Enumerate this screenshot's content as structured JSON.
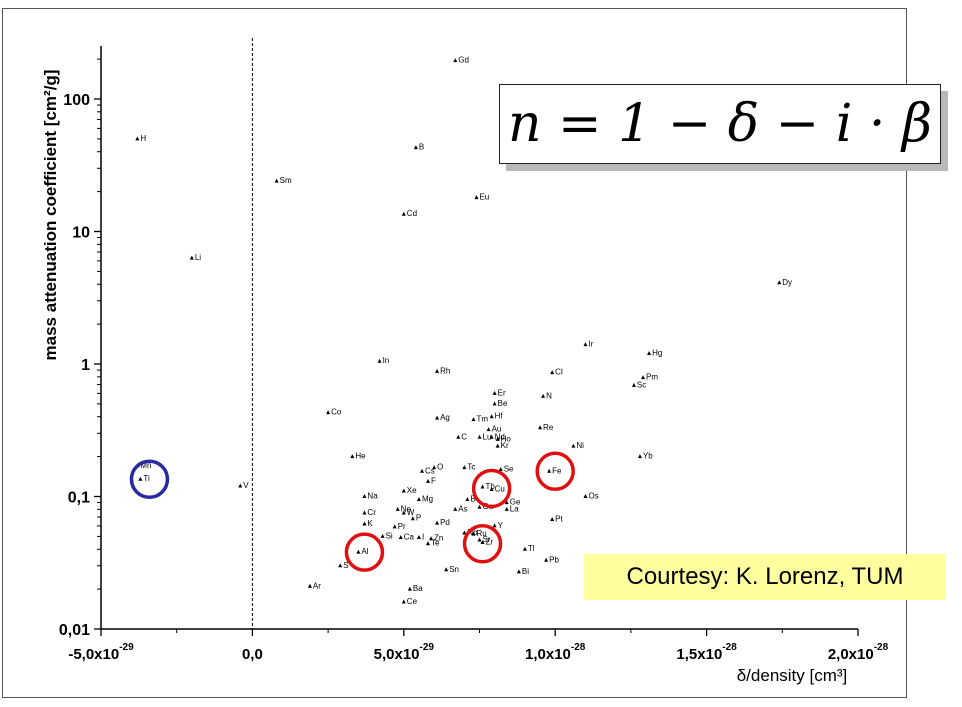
{
  "chart_data": {
    "type": "scatter",
    "xlabel": "δ/density [cm³]",
    "ylabel": "mass attenuation coefficient [cm²/g]",
    "xlim": [
      -5e-29,
      2e-28
    ],
    "ylim": [
      0.01,
      250
    ],
    "yscale": "log",
    "x_ticks": [
      {
        "value": -5e-29,
        "label_base": "-5,0x10",
        "label_exp": "-29"
      },
      {
        "value": 0,
        "label_base": "0,0",
        "label_exp": ""
      },
      {
        "value": 5e-29,
        "label_base": "5,0x10",
        "label_exp": "-29"
      },
      {
        "value": 1e-28,
        "label_base": "1,0x10",
        "label_exp": "-28"
      },
      {
        "value": 1.5e-28,
        "label_base": "1,5x10",
        "label_exp": "-28"
      },
      {
        "value": 2e-28,
        "label_base": "2,0x10",
        "label_exp": "-28"
      }
    ],
    "y_ticks": [
      {
        "value": 100,
        "label": "100"
      },
      {
        "value": 10,
        "label": "10"
      },
      {
        "value": 1,
        "label": "1"
      },
      {
        "value": 0.1,
        "label": "0,1"
      },
      {
        "value": 0.01,
        "label": "0,01"
      }
    ],
    "points": [
      {
        "label": "Gd",
        "x": 6.7e-29,
        "y": 195
      },
      {
        "label": "H",
        "x": -3.8e-29,
        "y": 50
      },
      {
        "label": "B",
        "x": 5.4e-29,
        "y": 43
      },
      {
        "label": "Sm",
        "x": 8e-30,
        "y": 24
      },
      {
        "label": "Eu",
        "x": 7.4e-29,
        "y": 18
      },
      {
        "label": "Cd",
        "x": 5e-29,
        "y": 13.5
      },
      {
        "label": "Li",
        "x": -2e-29,
        "y": 6.3
      },
      {
        "label": "Dy",
        "x": 1.74e-28,
        "y": 4.1
      },
      {
        "label": "Ir",
        "x": 1.1e-28,
        "y": 1.4
      },
      {
        "label": "Hg",
        "x": 1.31e-28,
        "y": 1.2
      },
      {
        "label": "In",
        "x": 4.2e-29,
        "y": 1.05
      },
      {
        "label": "Rh",
        "x": 6.1e-29,
        "y": 0.88
      },
      {
        "label": "Cl",
        "x": 9.9e-29,
        "y": 0.86
      },
      {
        "label": "Pm",
        "x": 1.29e-28,
        "y": 0.79
      },
      {
        "label": "Sc",
        "x": 1.26e-28,
        "y": 0.69
      },
      {
        "label": "Er",
        "x": 8e-29,
        "y": 0.6
      },
      {
        "label": "N",
        "x": 9.6e-29,
        "y": 0.57
      },
      {
        "label": "Be",
        "x": 8e-29,
        "y": 0.5
      },
      {
        "label": "Co",
        "x": 2.5e-29,
        "y": 0.43
      },
      {
        "label": "Hf",
        "x": 7.9e-29,
        "y": 0.4
      },
      {
        "label": "Ag",
        "x": 6.1e-29,
        "y": 0.39
      },
      {
        "label": "Tm",
        "x": 7.3e-29,
        "y": 0.38
      },
      {
        "label": "Re",
        "x": 9.5e-29,
        "y": 0.33
      },
      {
        "label": "Au",
        "x": 7.8e-29,
        "y": 0.32
      },
      {
        "label": "C",
        "x": 6.8e-29,
        "y": 0.28
      },
      {
        "label": "Lu",
        "x": 7.5e-29,
        "y": 0.28
      },
      {
        "label": "Nd",
        "x": 7.9e-29,
        "y": 0.28
      },
      {
        "label": "Ho",
        "x": 8.1e-29,
        "y": 0.27
      },
      {
        "label": "Kr",
        "x": 8.1e-29,
        "y": 0.24
      },
      {
        "label": "Ni",
        "x": 1.06e-28,
        "y": 0.24
      },
      {
        "label": "He",
        "x": 3.3e-29,
        "y": 0.2
      },
      {
        "label": "Yb",
        "x": 1.28e-28,
        "y": 0.2
      },
      {
        "label": "Tc",
        "x": 7e-29,
        "y": 0.165
      },
      {
        "label": "Se",
        "x": 8.2e-29,
        "y": 0.16
      },
      {
        "label": "Fe",
        "x": 9.8e-29,
        "y": 0.155
      },
      {
        "label": "Mn",
        "x": -3.8e-29,
        "y": 0.17
      },
      {
        "label": "O",
        "x": 6e-29,
        "y": 0.165
      },
      {
        "label": "Cs",
        "x": 5.6e-29,
        "y": 0.155
      },
      {
        "label": "Ti",
        "x": -3.7e-29,
        "y": 0.135
      },
      {
        "label": "F",
        "x": 5.8e-29,
        "y": 0.13
      },
      {
        "label": "V",
        "x": -4e-30,
        "y": 0.12
      },
      {
        "label": "Tb",
        "x": 7.6e-29,
        "y": 0.118
      },
      {
        "label": "Cu",
        "x": 7.9e-29,
        "y": 0.113
      },
      {
        "label": "Xe",
        "x": 5e-29,
        "y": 0.11
      },
      {
        "label": "Na",
        "x": 3.7e-29,
        "y": 0.1
      },
      {
        "label": "Os",
        "x": 1.1e-28,
        "y": 0.1
      },
      {
        "label": "Mg",
        "x": 5.5e-29,
        "y": 0.095
      },
      {
        "label": "B",
        "x": 7.1e-29,
        "y": 0.095
      },
      {
        "label": "Ge",
        "x": 8.4e-29,
        "y": 0.09
      },
      {
        "label": "Ga",
        "x": 7.5e-29,
        "y": 0.083
      },
      {
        "label": "La",
        "x": 8.4e-29,
        "y": 0.08
      },
      {
        "label": "As",
        "x": 6.7e-29,
        "y": 0.08
      },
      {
        "label": "Ne",
        "x": 4.8e-29,
        "y": 0.08
      },
      {
        "label": "W",
        "x": 5e-29,
        "y": 0.075
      },
      {
        "label": "Cr",
        "x": 3.7e-29,
        "y": 0.075
      },
      {
        "label": "P",
        "x": 5.3e-29,
        "y": 0.068
      },
      {
        "label": "Pt",
        "x": 9.9e-29,
        "y": 0.067
      },
      {
        "label": "Pd",
        "x": 6.1e-29,
        "y": 0.063
      },
      {
        "label": "K",
        "x": 3.7e-29,
        "y": 0.062
      },
      {
        "label": "Y",
        "x": 8e-29,
        "y": 0.06
      },
      {
        "label": "Pr",
        "x": 4.7e-29,
        "y": 0.059
      },
      {
        "label": "Nb",
        "x": 7e-29,
        "y": 0.053
      },
      {
        "label": "Ru",
        "x": 7.3e-29,
        "y": 0.052
      },
      {
        "label": "Si",
        "x": 4.3e-29,
        "y": 0.05
      },
      {
        "label": "Ca",
        "x": 4.9e-29,
        "y": 0.049
      },
      {
        "label": "I",
        "x": 5.5e-29,
        "y": 0.049
      },
      {
        "label": "Zn",
        "x": 5.9e-29,
        "y": 0.048
      },
      {
        "label": "Sr",
        "x": 7.5e-29,
        "y": 0.047
      },
      {
        "label": "Zr",
        "x": 7.6e-29,
        "y": 0.045
      },
      {
        "label": "Te",
        "x": 5.8e-29,
        "y": 0.044
      },
      {
        "label": "Tl",
        "x": 9e-29,
        "y": 0.04
      },
      {
        "label": "Al",
        "x": 3.5e-29,
        "y": 0.038
      },
      {
        "label": "Pb",
        "x": 9.7e-29,
        "y": 0.033
      },
      {
        "label": "S",
        "x": 2.9e-29,
        "y": 0.03
      },
      {
        "label": "Sn",
        "x": 6.4e-29,
        "y": 0.028
      },
      {
        "label": "Bi",
        "x": 8.8e-29,
        "y": 0.027
      },
      {
        "label": "Ar",
        "x": 1.9e-29,
        "y": 0.021
      },
      {
        "label": "Ba",
        "x": 5.2e-29,
        "y": 0.02
      },
      {
        "label": "Ce",
        "x": 5e-29,
        "y": 0.016
      }
    ],
    "highlight_circles": [
      {
        "label": "Ti",
        "x": -3.4e-29,
        "y": 0.135,
        "color": "#2a2aa0"
      },
      {
        "label": "Al",
        "x": 3.7e-29,
        "y": 0.038,
        "color": "#e01010"
      },
      {
        "label": "Zr",
        "x": 7.6e-29,
        "y": 0.044,
        "color": "#e01010"
      },
      {
        "label": "Cu",
        "x": 7.9e-29,
        "y": 0.115,
        "color": "#e01010"
      },
      {
        "label": "Fe",
        "x": 1e-28,
        "y": 0.155,
        "color": "#e01010"
      }
    ],
    "reference_line": {
      "x": 0,
      "style": "dashed"
    }
  },
  "equation": "n = 1 − δ − i · β",
  "courtesy": "Courtesy: K. Lorenz, TUM",
  "colors": {
    "axis": "#000000",
    "marker": "#000000",
    "blue_circle": "#2a2aa0",
    "red_circle": "#e01010",
    "courtesy_bg": "#ffffa0"
  }
}
